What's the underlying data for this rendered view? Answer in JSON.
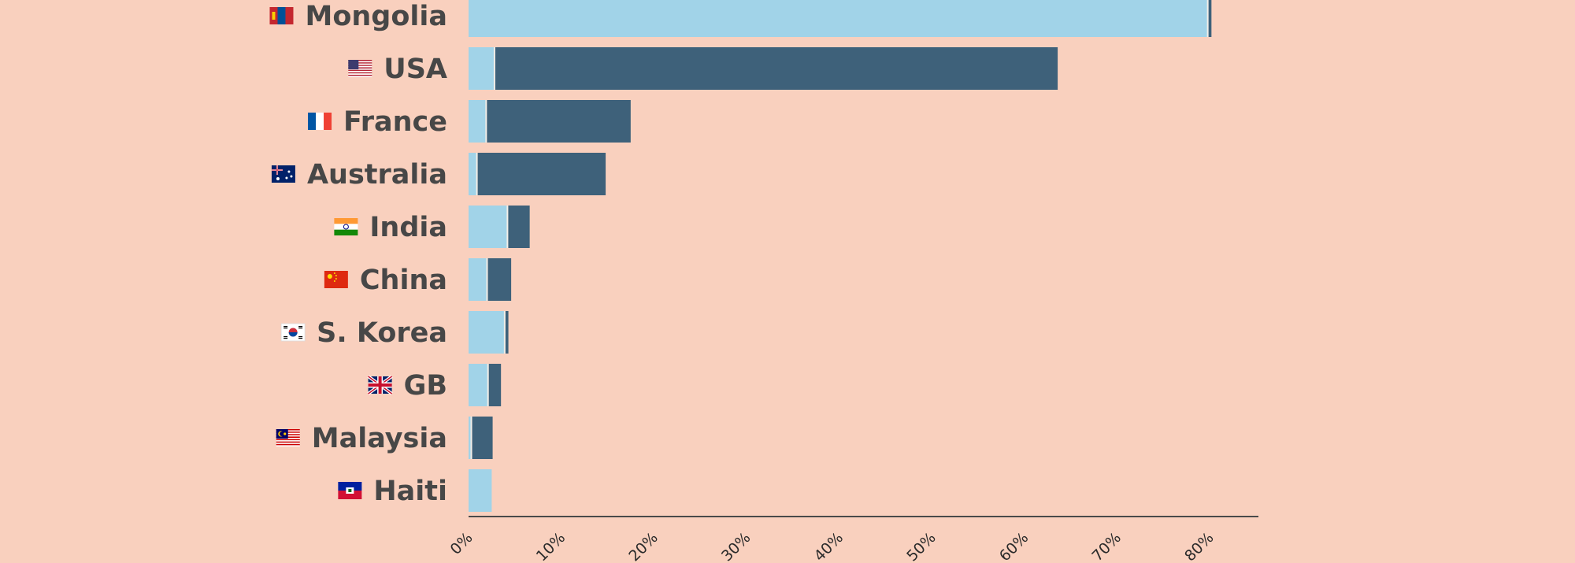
{
  "chart_data": {
    "type": "bar",
    "orientation": "horizontal",
    "stacked": true,
    "categories": [
      "Mongolia",
      "USA",
      "France",
      "Australia",
      "India",
      "China",
      "S. Korea",
      "GB",
      "Malaysia",
      "Haiti"
    ],
    "flag_icons": [
      "flag-mongolia-icon",
      "flag-usa-icon",
      "flag-france-icon",
      "flag-australia-icon",
      "flag-india-icon",
      "flag-china-icon",
      "flag-south-korea-icon",
      "flag-gb-icon",
      "flag-malaysia-icon",
      "flag-haiti-icon"
    ],
    "series": [
      {
        "color": "#a1d3e8",
        "values": [
          79.8,
          2.8,
          1.9,
          0.9,
          4.2,
          2.0,
          3.9,
          2.1,
          0.3,
          2.5
        ]
      },
      {
        "color": "#3e617a",
        "values": [
          0.4,
          60.8,
          15.6,
          13.9,
          2.4,
          2.6,
          0.4,
          1.4,
          2.3,
          0.0
        ]
      }
    ],
    "xlim": [
      0,
      85
    ],
    "xticks": [
      0,
      10,
      20,
      30,
      40,
      50,
      60,
      70,
      80
    ],
    "xtick_labels": [
      "0%",
      "10%",
      "20%",
      "30%",
      "40%",
      "50%",
      "60%",
      "70%",
      "80%"
    ],
    "title": "",
    "xlabel": "",
    "ylabel": "",
    "grid": false,
    "legend": "none"
  },
  "colors": {
    "background": "#f9d0be",
    "axis": "#4a4a4a",
    "label_text": "#474747"
  }
}
